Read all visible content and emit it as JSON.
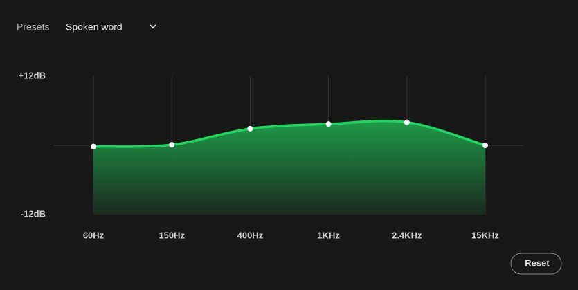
{
  "presets_label": "Presets",
  "preset_value": "Spoken word",
  "reset_label": "Reset",
  "chart_data": {
    "type": "line",
    "categories": [
      "60Hz",
      "150Hz",
      "400Hz",
      "1KHz",
      "2.4KHz",
      "15KHz"
    ],
    "values": [
      -0.2,
      0.1,
      2.9,
      3.7,
      4.0,
      0
    ],
    "color": "#1ed760",
    "ylim": [
      -12,
      12
    ],
    "yticks": [
      {
        "value": 12,
        "label": "+12dB"
      },
      {
        "value": -12,
        "label": "-12dB"
      }
    ],
    "grid": true
  }
}
